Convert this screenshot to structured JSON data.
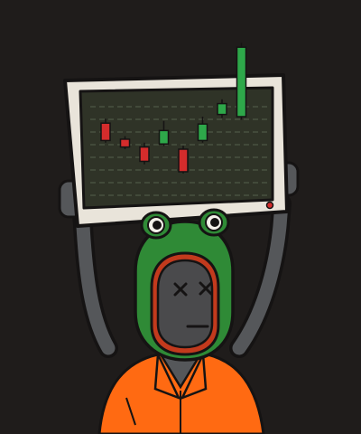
{
  "colors": {
    "background": "#1f1c1b",
    "monitor_frame": "#e9e4da",
    "monitor_screen": "#2f3327",
    "grid_line": "#55604d",
    "candle_up": "#2ea84a",
    "candle_down": "#d42c2c",
    "power_led": "#d42c2c",
    "frog_green": "#2f8a36",
    "face_gray": "#4a4a4c",
    "face_rim": "#c23a1d",
    "arm_gray": "#55575a",
    "suit_orange": "#ff6a12",
    "outline": "#151313"
  },
  "chart_data": {
    "type": "candlestick",
    "series": [
      {
        "direction": "down",
        "open": 6,
        "close": 2,
        "high": 7,
        "low": 1.5
      },
      {
        "direction": "down",
        "open": 2.3,
        "close": 0.5,
        "high": 3,
        "low": 0
      },
      {
        "direction": "down",
        "open": 0.5,
        "close": -2.8,
        "high": 1.5,
        "low": -3.5
      },
      {
        "direction": "up",
        "open": 1.2,
        "close": 4.3,
        "high": 6.5,
        "low": 0.7
      },
      {
        "direction": "down",
        "open": 0,
        "close": -5.2,
        "high": 0.8,
        "low": -5.6
      },
      {
        "direction": "up",
        "open": 2,
        "close": 5.8,
        "high": 7.5,
        "low": 1.5
      },
      {
        "direction": "up",
        "open": 8,
        "close": 10.5,
        "high": 11.5,
        "low": 7.2
      },
      {
        "direction": "up",
        "open": 7.5,
        "close": 23.5,
        "high": 24.5,
        "low": 6.8
      }
    ]
  }
}
